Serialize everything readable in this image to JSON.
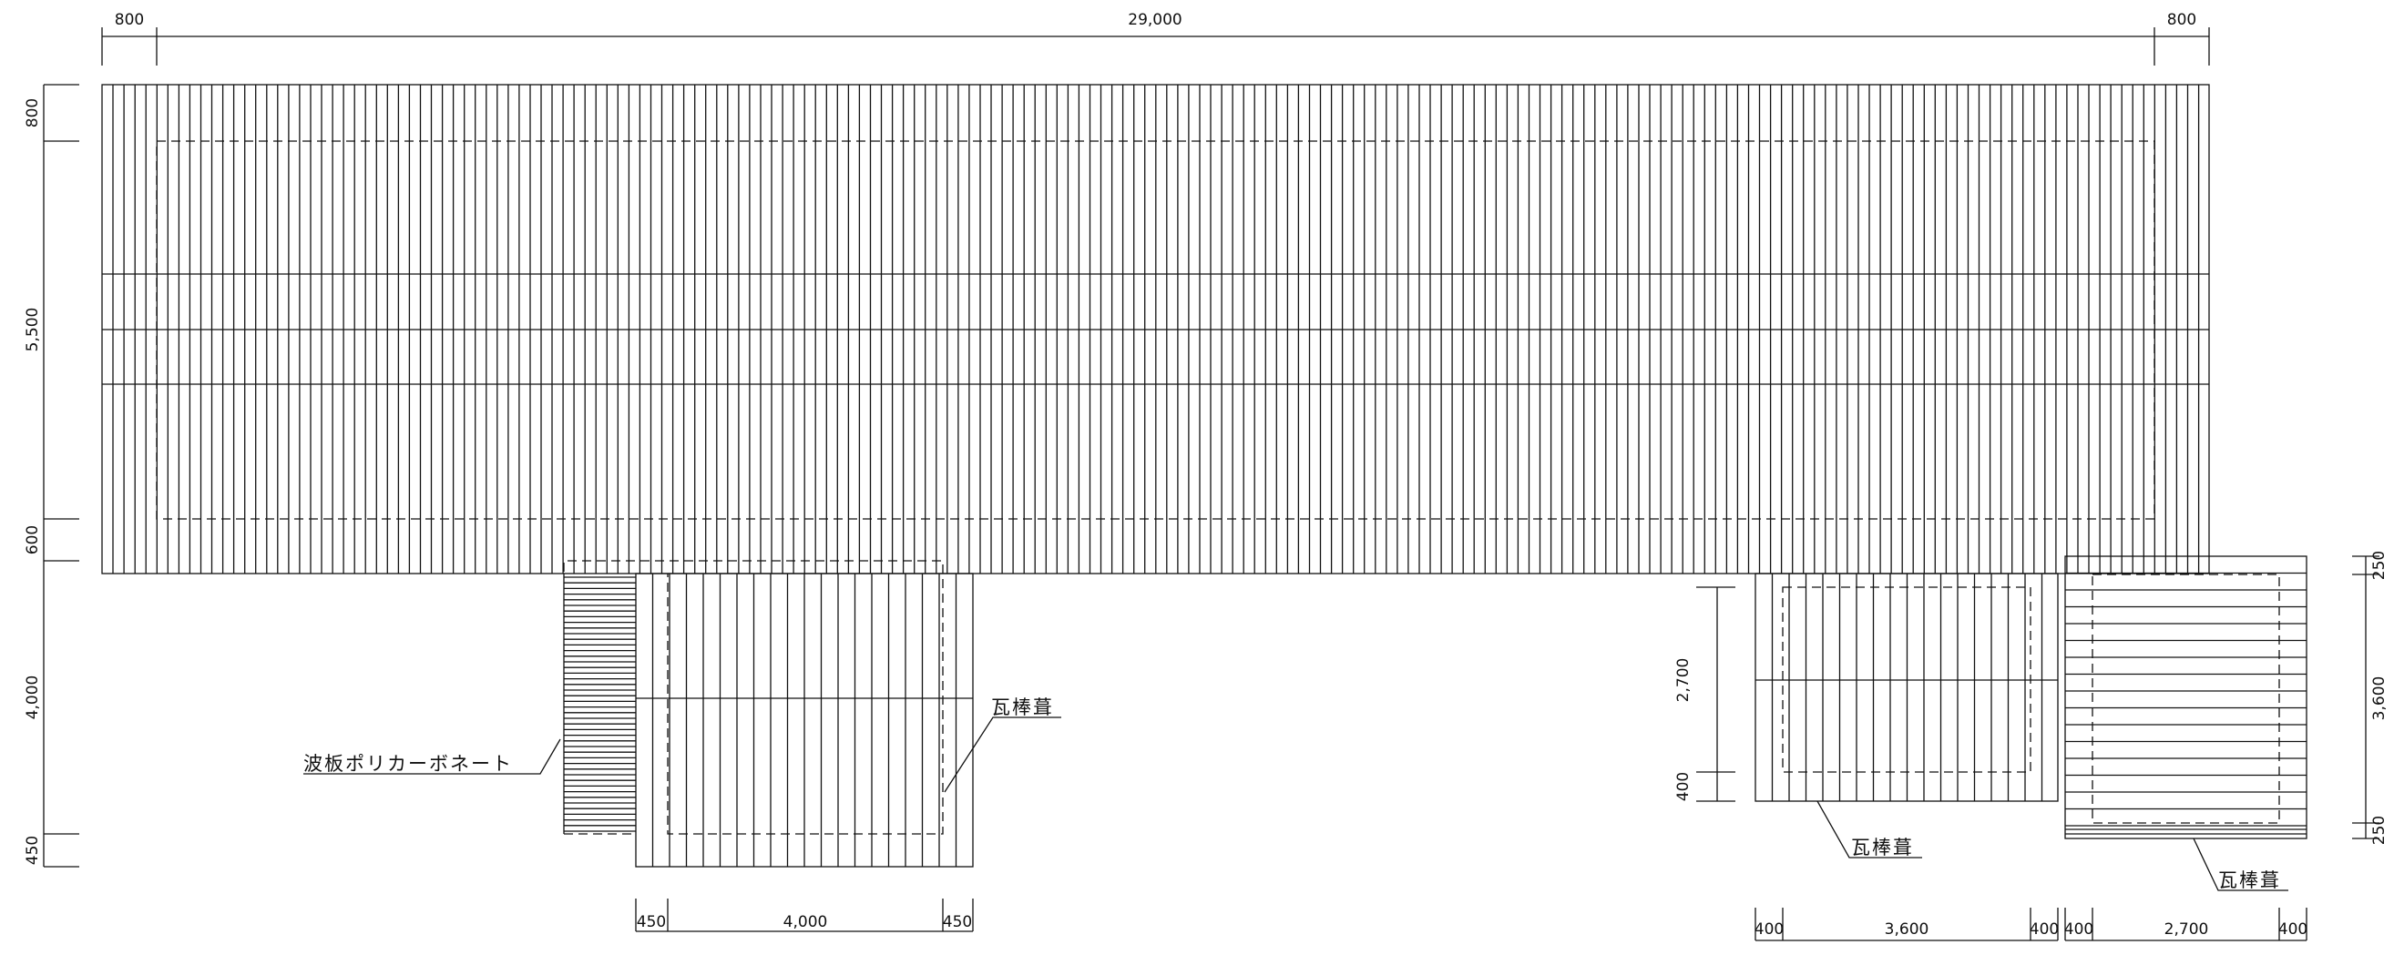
{
  "main_roof": {
    "dims_top": {
      "left": "800",
      "center": "29,000",
      "right": "800"
    },
    "dims_left": {
      "eave_top": "800",
      "depth": "5,500",
      "eave_bottom": "600"
    }
  },
  "left_annex": {
    "dims_left": {
      "depth": "4,000",
      "eave": "450"
    },
    "dims_bottom": {
      "left": "450",
      "center": "4,000",
      "right": "450"
    },
    "label_roofing": "瓦棒葺",
    "label_polycarbonate": "波板ポリカーボネート"
  },
  "right_annex_a": {
    "dims_left": {
      "depth": "2,700",
      "eave": "400"
    },
    "dims_bottom": {
      "left": "400",
      "center": "3,600",
      "right": "400"
    },
    "label_roofing": "瓦棒葺"
  },
  "right_annex_b": {
    "dims_right": {
      "top": "250",
      "depth": "3,600",
      "bottom": "250"
    },
    "dims_bottom": {
      "left": "400",
      "center": "2,700",
      "right": "400"
    },
    "label_roofing": "瓦棒葺"
  }
}
